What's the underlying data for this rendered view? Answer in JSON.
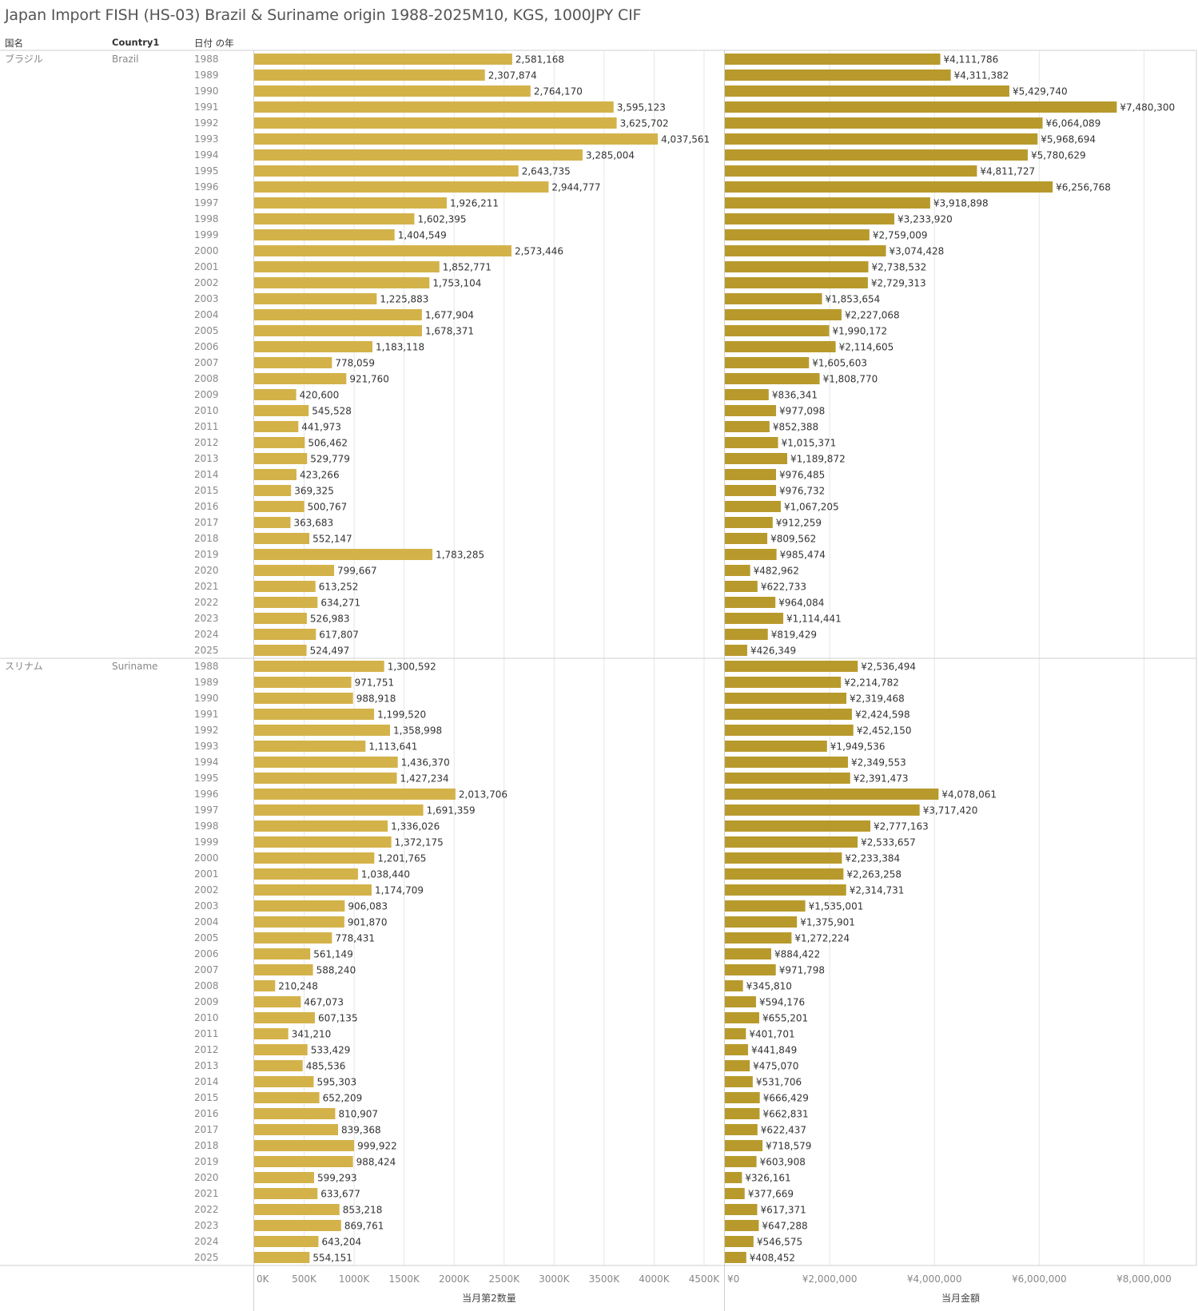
{
  "title": "Japan Import FISH (HS-03) Brazil & Suriname origin 1988-2025M10, KGS, 1000JPY CIF",
  "headers": {
    "country": "国名",
    "country1": "Country1",
    "year": "日付 の年"
  },
  "colors": {
    "qty_bar": "#D4B24A",
    "val_bar": "#B89A2C",
    "grid": "#e6e6e6",
    "divider": "#cfcfcf"
  },
  "chart_data": [
    {
      "type": "bar",
      "orientation": "horizontal",
      "measure_title": "当月第2数量",
      "xlim": [
        0,
        4700000
      ],
      "ticks": [
        0,
        500000,
        1000000,
        1500000,
        2000000,
        2500000,
        3000000,
        3500000,
        4000000,
        4500000
      ],
      "tick_labels": [
        "0K",
        "500K",
        "1000K",
        "1500K",
        "2000K",
        "2500K",
        "3000K",
        "3500K",
        "4000K",
        "4500K"
      ],
      "series": [
        {
          "name": "Brazil",
          "values": [
            2581168,
            2307874,
            2764170,
            3595123,
            3625702,
            4037561,
            3285004,
            2643735,
            2944777,
            1926211,
            1602395,
            1404549,
            2573446,
            1852771,
            1753104,
            1225883,
            1677904,
            1678371,
            1183118,
            778059,
            921760,
            420600,
            545528,
            441973,
            506462,
            529779,
            423266,
            369325,
            500767,
            363683,
            552147,
            1783285,
            799667,
            613252,
            634271,
            526983,
            617807,
            524497
          ],
          "labels": [
            "2,581,168",
            "2,307,874",
            "2,764,170",
            "3,595,123",
            "3,625,702",
            "4,037,561",
            "3,285,004",
            "2,643,735",
            "2,944,777",
            "1,926,211",
            "1,602,395",
            "1,404,549",
            "2,573,446",
            "1,852,771",
            "1,753,104",
            "1,225,883",
            "1,677,904",
            "1,678,371",
            "1,183,118",
            "778,059",
            "921,760",
            "420,600",
            "545,528",
            "441,973",
            "506,462",
            "529,779",
            "423,266",
            "369,325",
            "500,767",
            "363,683",
            "552,147",
            "1,783,285",
            "799,667",
            "613,252",
            "634,271",
            "526,983",
            "617,807",
            "524,497"
          ]
        },
        {
          "name": "Suriname",
          "values": [
            1300592,
            971751,
            988918,
            1199520,
            1358998,
            1113641,
            1436370,
            1427234,
            2013706,
            1691359,
            1336026,
            1372175,
            1201765,
            1038440,
            1174709,
            906083,
            901870,
            778431,
            561149,
            588240,
            210248,
            467073,
            607135,
            341210,
            533429,
            485536,
            595303,
            652209,
            810907,
            839368,
            999922,
            988424,
            599293,
            633677,
            853218,
            869761,
            643204,
            554151
          ],
          "labels": [
            "1,300,592",
            "971,751",
            "988,918",
            "1,199,520",
            "1,358,998",
            "1,113,641",
            "1,436,370",
            "1,427,234",
            "2,013,706",
            "1,691,359",
            "1,336,026",
            "1,372,175",
            "1,201,765",
            "1,038,440",
            "1,174,709",
            "906,083",
            "901,870",
            "778,431",
            "561,149",
            "588,240",
            "210,248",
            "467,073",
            "607,135",
            "341,210",
            "533,429",
            "485,536",
            "595,303",
            "652,209",
            "810,907",
            "839,368",
            "999,922",
            "988,424",
            "599,293",
            "633,677",
            "853,218",
            "869,761",
            "643,204",
            "554,151"
          ]
        }
      ]
    },
    {
      "type": "bar",
      "orientation": "horizontal",
      "measure_title": "当月金額",
      "xlim": [
        0,
        9000000
      ],
      "ticks": [
        0,
        2000000,
        4000000,
        6000000,
        8000000
      ],
      "tick_labels": [
        "¥0",
        "¥2,000,000",
        "¥4,000,000",
        "¥6,000,000",
        "¥8,000,000"
      ],
      "series": [
        {
          "name": "Brazil",
          "values": [
            4111786,
            4311382,
            5429740,
            7480300,
            6064089,
            5968694,
            5780629,
            4811727,
            6256768,
            3918898,
            3233920,
            2759009,
            3074428,
            2738532,
            2729313,
            1853654,
            2227068,
            1990172,
            2114605,
            1605603,
            1808770,
            836341,
            977098,
            852388,
            1015371,
            1189872,
            976485,
            976732,
            1067205,
            912259,
            809562,
            985474,
            482962,
            622733,
            964084,
            1114441,
            819429,
            426349
          ],
          "labels": [
            "¥4,111,786",
            "¥4,311,382",
            "¥5,429,740",
            "¥7,480,300",
            "¥6,064,089",
            "¥5,968,694",
            "¥5,780,629",
            "¥4,811,727",
            "¥6,256,768",
            "¥3,918,898",
            "¥3,233,920",
            "¥2,759,009",
            "¥3,074,428",
            "¥2,738,532",
            "¥2,729,313",
            "¥1,853,654",
            "¥2,227,068",
            "¥1,990,172",
            "¥2,114,605",
            "¥1,605,603",
            "¥1,808,770",
            "¥836,341",
            "¥977,098",
            "¥852,388",
            "¥1,015,371",
            "¥1,189,872",
            "¥976,485",
            "¥976,732",
            "¥1,067,205",
            "¥912,259",
            "¥809,562",
            "¥985,474",
            "¥482,962",
            "¥622,733",
            "¥964,084",
            "¥1,114,441",
            "¥819,429",
            "¥426,349"
          ]
        },
        {
          "name": "Suriname",
          "values": [
            2536494,
            2214782,
            2319468,
            2424598,
            2452150,
            1949536,
            2349553,
            2391473,
            4078061,
            3717420,
            2777163,
            2533657,
            2233384,
            2263258,
            2314731,
            1535001,
            1375901,
            1272224,
            884422,
            971798,
            345810,
            594176,
            655201,
            401701,
            441849,
            475070,
            531706,
            666429,
            662831,
            622437,
            718579,
            603908,
            326161,
            377669,
            617371,
            647288,
            546575,
            408452
          ],
          "labels": [
            "¥2,536,494",
            "¥2,214,782",
            "¥2,319,468",
            "¥2,424,598",
            "¥2,452,150",
            "¥1,949,536",
            "¥2,349,553",
            "¥2,391,473",
            "¥4,078,061",
            "¥3,717,420",
            "¥2,777,163",
            "¥2,533,657",
            "¥2,233,384",
            "¥2,263,258",
            "¥2,314,731",
            "¥1,535,001",
            "¥1,375,901",
            "¥1,272,224",
            "¥884,422",
            "¥971,798",
            "¥345,810",
            "¥594,176",
            "¥655,201",
            "¥401,701",
            "¥441,849",
            "¥475,070",
            "¥531,706",
            "¥666,429",
            "¥662,831",
            "¥622,437",
            "¥718,579",
            "¥603,908",
            "¥326,161",
            "¥377,669",
            "¥617,371",
            "¥647,288",
            "¥546,575",
            "¥408,452"
          ]
        }
      ]
    }
  ],
  "groups": [
    {
      "country": "ブラジル",
      "country1": "Brazil"
    },
    {
      "country": "スリナム",
      "country1": "Suriname"
    }
  ],
  "years": [
    "1988",
    "1989",
    "1990",
    "1991",
    "1992",
    "1993",
    "1994",
    "1995",
    "1996",
    "1997",
    "1998",
    "1999",
    "2000",
    "2001",
    "2002",
    "2003",
    "2004",
    "2005",
    "2006",
    "2007",
    "2008",
    "2009",
    "2010",
    "2011",
    "2012",
    "2013",
    "2014",
    "2015",
    "2016",
    "2017",
    "2018",
    "2019",
    "2020",
    "2021",
    "2022",
    "2023",
    "2024",
    "2025"
  ]
}
